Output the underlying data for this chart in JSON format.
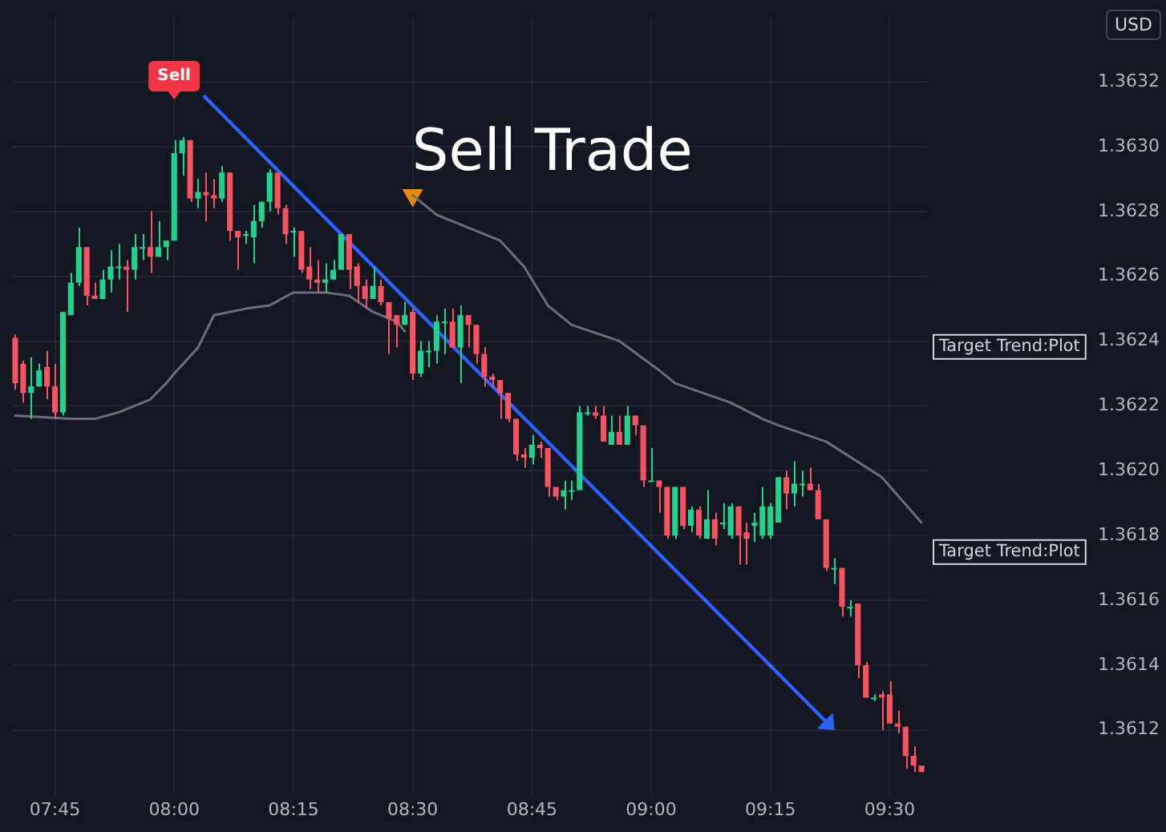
{
  "chart_data": {
    "type": "candlestick",
    "title": "Sell Trade",
    "x": [
      7.6667,
      7.6833,
      7.7,
      7.7167,
      7.7333,
      7.75,
      7.7667,
      7.7833,
      7.8,
      7.8167,
      7.8333,
      7.85,
      7.8667,
      7.8833,
      7.9,
      7.9167,
      7.9333,
      7.95,
      7.9667,
      7.9833,
      8,
      8.0167,
      8.0333,
      8.05,
      8.0667,
      8.0833,
      8.1,
      8.1167,
      8.1333,
      8.15,
      8.1667,
      8.1833,
      8.2,
      8.2167,
      8.2333,
      8.25,
      8.2667,
      8.2833,
      8.3,
      8.3167,
      8.3333,
      8.35,
      8.3667,
      8.3833,
      8.4,
      8.4167,
      8.4333,
      8.45,
      8.4667,
      8.4833,
      8.5,
      8.5167,
      8.5333,
      8.55,
      8.5667,
      8.5833,
      8.6,
      8.6167,
      8.6333,
      8.65,
      8.6667,
      8.6833,
      8.7,
      8.7167,
      8.7333,
      8.75,
      8.7667,
      8.7833,
      8.8,
      8.8167,
      8.8333,
      8.85,
      8.8667,
      8.8833,
      8.9,
      8.9167,
      8.9333,
      8.95,
      8.9667,
      8.9833,
      9,
      9.0167,
      9.0333,
      9.05,
      9.0667,
      9.0833,
      9.1,
      9.1167,
      9.1333,
      9.15,
      9.1667,
      9.1833,
      9.2,
      9.2167,
      9.2333,
      9.25,
      9.2667,
      9.2833,
      9.3,
      9.3167,
      9.3333,
      9.35,
      9.3667,
      9.3833,
      9.4,
      9.4167,
      9.4333,
      9.45,
      9.4667,
      9.4833,
      9.5,
      9.5167,
      9.5333,
      9.55,
      9.5667
    ],
    "ohlc": [
      [
        1.36241,
        1.36242,
        1.36225,
        1.36227
      ],
      [
        1.36233,
        1.36234,
        1.36221,
        1.36224
      ],
      [
        1.36224,
        1.36235,
        1.36216,
        1.36226
      ],
      [
        1.36226,
        1.36233,
        1.36226,
        1.36231
      ],
      [
        1.36232,
        1.36237,
        1.36222,
        1.36226
      ],
      [
        1.36226,
        1.36233,
        1.36216,
        1.36218
      ],
      [
        1.36218,
        1.36249,
        1.36217,
        1.36249
      ],
      [
        1.36248,
        1.36261,
        1.36248,
        1.36258
      ],
      [
        1.36258,
        1.36275,
        1.36257,
        1.36269
      ],
      [
        1.36269,
        1.36269,
        1.36251,
        1.36254
      ],
      [
        1.36254,
        1.36258,
        1.36253,
        1.36253
      ],
      [
        1.36253,
        1.36262,
        1.36253,
        1.36259
      ],
      [
        1.36259,
        1.36268,
        1.36255,
        1.36263
      ],
      [
        1.36263,
        1.3627,
        1.36259,
        1.36263
      ],
      [
        1.36263,
        1.36265,
        1.36249,
        1.36262
      ],
      [
        1.36262,
        1.36273,
        1.36259,
        1.36269
      ],
      [
        1.36269,
        1.36273,
        1.36265,
        1.36269
      ],
      [
        1.36269,
        1.3628,
        1.36261,
        1.36266
      ],
      [
        1.36266,
        1.36277,
        1.36266,
        1.36269
      ],
      [
        1.36269,
        1.36271,
        1.36265,
        1.36271
      ],
      [
        1.36271,
        1.36302,
        1.36271,
        1.36298
      ],
      [
        1.36298,
        1.36303,
        1.36291,
        1.36302
      ],
      [
        1.36302,
        1.36302,
        1.36283,
        1.36284
      ],
      [
        1.36284,
        1.3629,
        1.36281,
        1.36286
      ],
      [
        1.36286,
        1.36292,
        1.36277,
        1.36285
      ],
      [
        1.36285,
        1.3629,
        1.36281,
        1.36284
      ],
      [
        1.36284,
        1.36294,
        1.36283,
        1.36292
      ],
      [
        1.36292,
        1.36292,
        1.36271,
        1.36274
      ],
      [
        1.36274,
        1.36274,
        1.36262,
        1.36272
      ],
      [
        1.36273,
        1.36274,
        1.3627,
        1.36273
      ],
      [
        1.36272,
        1.36282,
        1.36264,
        1.36277
      ],
      [
        1.36277,
        1.36283,
        1.36275,
        1.36283
      ],
      [
        1.36283,
        1.36293,
        1.3628,
        1.36292
      ],
      [
        1.36292,
        1.36292,
        1.36279,
        1.36281
      ],
      [
        1.36281,
        1.36282,
        1.3627,
        1.36273
      ],
      [
        1.36274,
        1.36275,
        1.36266,
        1.36274
      ],
      [
        1.36274,
        1.36274,
        1.36261,
        1.36262
      ],
      [
        1.36263,
        1.36269,
        1.36256,
        1.36259
      ],
      [
        1.36259,
        1.36265,
        1.36255,
        1.36258
      ],
      [
        1.36258,
        1.36264,
        1.36255,
        1.36259
      ],
      [
        1.36259,
        1.36265,
        1.36259,
        1.36262
      ],
      [
        1.36262,
        1.36273,
        1.36262,
        1.36273
      ],
      [
        1.36273,
        1.36273,
        1.36256,
        1.36262
      ],
      [
        1.36263,
        1.36264,
        1.36252,
        1.36257
      ],
      [
        1.36257,
        1.36259,
        1.3625,
        1.36253
      ],
      [
        1.36253,
        1.36263,
        1.36253,
        1.36257
      ],
      [
        1.36257,
        1.36259,
        1.36251,
        1.36252
      ],
      [
        1.36252,
        1.36252,
        1.36236,
        1.36247
      ],
      [
        1.36248,
        1.36248,
        1.36238,
        1.36245
      ],
      [
        1.36245,
        1.36252,
        1.36245,
        1.36248
      ],
      [
        1.36249,
        1.3625,
        1.36228,
        1.3623
      ],
      [
        1.3623,
        1.3624,
        1.36229,
        1.36237
      ],
      [
        1.36237,
        1.3624,
        1.36232,
        1.36237
      ],
      [
        1.36237,
        1.36248,
        1.36233,
        1.36246
      ],
      [
        1.36246,
        1.3625,
        1.36236,
        1.36246
      ],
      [
        1.36246,
        1.3625,
        1.36238,
        1.36238
      ],
      [
        1.36238,
        1.36251,
        1.36227,
        1.36248
      ],
      [
        1.36248,
        1.36248,
        1.36238,
        1.36245
      ],
      [
        1.36245,
        1.36245,
        1.36233,
        1.36236
      ],
      [
        1.36236,
        1.36238,
        1.36226,
        1.36229
      ],
      [
        1.36229,
        1.3623,
        1.36226,
        1.36228
      ],
      [
        1.36228,
        1.36228,
        1.36216,
        1.36224
      ],
      [
        1.36224,
        1.36224,
        1.36215,
        1.36216
      ],
      [
        1.36216,
        1.36216,
        1.36203,
        1.36205
      ],
      [
        1.36205,
        1.36207,
        1.36201,
        1.36204
      ],
      [
        1.36204,
        1.36211,
        1.36202,
        1.36208
      ],
      [
        1.36208,
        1.36209,
        1.36204,
        1.36207
      ],
      [
        1.36207,
        1.36207,
        1.36192,
        1.36195
      ],
      [
        1.36195,
        1.36195,
        1.36191,
        1.36192
      ],
      [
        1.36192,
        1.36197,
        1.36188,
        1.36194
      ],
      [
        1.36194,
        1.36197,
        1.36191,
        1.36194
      ],
      [
        1.36194,
        1.3622,
        1.36194,
        1.36218
      ],
      [
        1.36218,
        1.3622,
        1.36217,
        1.36218
      ],
      [
        1.36218,
        1.3622,
        1.36216,
        1.36217
      ],
      [
        1.36217,
        1.3622,
        1.36209,
        1.36209
      ],
      [
        1.36208,
        1.36217,
        1.36208,
        1.36212
      ],
      [
        1.36212,
        1.36217,
        1.36208,
        1.36208
      ],
      [
        1.36208,
        1.3622,
        1.36208,
        1.36217
      ],
      [
        1.36217,
        1.36217,
        1.36211,
        1.36214
      ],
      [
        1.36214,
        1.36214,
        1.36195,
        1.36197
      ],
      [
        1.36197,
        1.36207,
        1.36197,
        1.36197
      ],
      [
        1.36197,
        1.36197,
        1.36187,
        1.36195
      ],
      [
        1.36195,
        1.36195,
        1.36179,
        1.3618
      ],
      [
        1.3618,
        1.36195,
        1.36179,
        1.36195
      ],
      [
        1.36195,
        1.36195,
        1.36182,
        1.36183
      ],
      [
        1.36183,
        1.36189,
        1.36181,
        1.36188
      ],
      [
        1.36188,
        1.36189,
        1.36179,
        1.3618
      ],
      [
        1.36179,
        1.36194,
        1.36179,
        1.36185
      ],
      [
        1.36185,
        1.36187,
        1.36177,
        1.36179
      ],
      [
        1.36184,
        1.3619,
        1.36182,
        1.36184
      ],
      [
        1.3618,
        1.3619,
        1.36179,
        1.36189
      ],
      [
        1.36189,
        1.36189,
        1.36171,
        1.3618
      ],
      [
        1.36181,
        1.36184,
        1.36171,
        1.36179
      ],
      [
        1.36183,
        1.36187,
        1.36178,
        1.36184
      ],
      [
        1.3618,
        1.36195,
        1.36179,
        1.36189
      ],
      [
        1.3618,
        1.3619,
        1.36179,
        1.36189
      ],
      [
        1.36184,
        1.36198,
        1.36184,
        1.36198
      ],
      [
        1.36198,
        1.362,
        1.36188,
        1.36193
      ],
      [
        1.36193,
        1.36203,
        1.36189,
        1.36196
      ],
      [
        1.36196,
        1.362,
        1.36192,
        1.36196
      ],
      [
        1.36196,
        1.36201,
        1.36194,
        1.36194
      ],
      [
        1.36194,
        1.36196,
        1.36185,
        1.36185
      ],
      [
        1.36185,
        1.36185,
        1.36169,
        1.3617
      ],
      [
        1.3617,
        1.36173,
        1.36165,
        1.3617
      ],
      [
        1.3617,
        1.3617,
        1.36155,
        1.36158
      ],
      [
        1.36158,
        1.3616,
        1.36155,
        1.36158
      ],
      [
        1.36159,
        1.36159,
        1.36136,
        1.3614
      ],
      [
        1.3614,
        1.36141,
        1.3613,
        1.3613
      ],
      [
        1.3613,
        1.36131,
        1.36129,
        1.3613
      ],
      [
        1.36131,
        1.36132,
        1.3612,
        1.3613
      ],
      [
        1.36131,
        1.36135,
        1.36122,
        1.36122
      ],
      [
        1.36122,
        1.36126,
        1.36119,
        1.36121
      ],
      [
        1.36121,
        1.36121,
        1.36108,
        1.36112
      ],
      [
        1.36112,
        1.36115,
        1.36107,
        1.36109
      ],
      [
        1.36109,
        1.36109,
        1.36107,
        1.36107
      ]
    ],
    "colors": [
      "#f7525f",
      "#f7525f",
      "#22d18b",
      "#22d18b",
      "#f7525f",
      "#f7525f",
      "#22d18b",
      "#22d18b",
      "#22d18b",
      "#f7525f",
      "#f7525f",
      "#22d18b",
      "#22d18b",
      "#22d18b",
      "#f7525f",
      "#22d18b",
      "#22d18b",
      "#f7525f",
      "#22d18b",
      "#22d18b",
      "#22d18b",
      "#22d18b",
      "#f7525f",
      "#22d18b",
      "#f7525f",
      "#f7525f",
      "#22d18b",
      "#f7525f",
      "#f7525f",
      "#22d18b",
      "#22d18b",
      "#22d18b",
      "#22d18b",
      "#f7525f",
      "#f7525f",
      "#22d18b",
      "#f7525f",
      "#f7525f",
      "#f7525f",
      "#22d18b",
      "#22d18b",
      "#22d18b",
      "#f7525f",
      "#f7525f",
      "#f7525f",
      "#22d18b",
      "#f7525f",
      "#f7525f",
      "#f7525f",
      "#22d18b",
      "#f7525f",
      "#22d18b",
      "#22d18b",
      "#22d18b",
      "#22d18b",
      "#f7525f",
      "#22d18b",
      "#f7525f",
      "#f7525f",
      "#f7525f",
      "#f7525f",
      "#f7525f",
      "#f7525f",
      "#f7525f",
      "#f7525f",
      "#22d18b",
      "#f7525f",
      "#f7525f",
      "#f7525f",
      "#22d18b",
      "#22d18b",
      "#22d18b",
      "#22d18b",
      "#f7525f",
      "#f7525f",
      "#22d18b",
      "#f7525f",
      "#22d18b",
      "#f7525f",
      "#f7525f",
      "#22d18b",
      "#f7525f",
      "#f7525f",
      "#22d18b",
      "#f7525f",
      "#22d18b",
      "#f7525f",
      "#22d18b",
      "#f7525f",
      "#22d18b",
      "#22d18b",
      "#f7525f",
      "#f7525f",
      "#22d18b",
      "#22d18b",
      "#22d18b",
      "#22d18b",
      "#f7525f",
      "#22d18b",
      "#22d18b",
      "#f7525f",
      "#f7525f",
      "#f7525f",
      "#22d18b",
      "#f7525f",
      "#22d18b",
      "#f7525f",
      "#f7525f",
      "#22d18b",
      "#f7525f",
      "#f7525f",
      "#f7525f",
      "#f7525f",
      "#f7525f",
      "#f7525f"
    ],
    "series": [
      {
        "type": "line",
        "color": "#6b6e79",
        "x": [
          7.6667,
          7.7833,
          7.8333,
          7.8833,
          7.95,
          7.9833,
          8,
          8.05,
          8.0833,
          8.15,
          8.2,
          8.25,
          8.3167,
          8.3667,
          8.4167,
          8.4667,
          8.4833
        ],
        "values": [
          1.36217,
          1.36216,
          1.36216,
          1.36218,
          1.36222,
          1.36227,
          1.3623,
          1.36238,
          1.36248,
          1.3625,
          1.36251,
          1.36255,
          1.36255,
          1.36254,
          1.36249,
          1.36246,
          1.36243
        ]
      },
      {
        "type": "line",
        "color": "#6b6e79",
        "x": [
          8.5,
          8.55,
          8.6333,
          8.6833,
          8.7333,
          8.7833,
          8.8333,
          8.9333,
          9.0167,
          9.05,
          9.1667,
          9.2333,
          9.2667,
          9.3667,
          9.4833,
          9.5667
        ],
        "values": [
          1.36285,
          1.36279,
          1.36274,
          1.36271,
          1.36263,
          1.36251,
          1.36245,
          1.3624,
          1.36231,
          1.36227,
          1.36221,
          1.36216,
          1.36214,
          1.36209,
          1.36198,
          1.36184
        ]
      },
      {
        "type": "scatter",
        "color": "#e68a00",
        "marker": "triangle",
        "x": [
          8.5
        ],
        "values": [
          1.36285
        ]
      }
    ],
    "annotations": [
      "Sell",
      "Target Trend:Plot",
      "Target Trend:Plot",
      "USD"
    ],
    "xlim": [
      7.66,
      9.58
    ],
    "xticks": [
      {
        "value": 7.75,
        "label": "07:45"
      },
      {
        "value": 8,
        "label": "08:00"
      },
      {
        "value": 8.25,
        "label": "08:15"
      },
      {
        "value": 8.5,
        "label": "08:30"
      },
      {
        "value": 8.75,
        "label": "08:45"
      },
      {
        "value": 9,
        "label": "09:00"
      },
      {
        "value": 9.25,
        "label": "09:15"
      },
      {
        "value": 9.5,
        "label": "09:30"
      }
    ],
    "ylim": [
      1.361,
      1.3634
    ],
    "yticks": [
      1.3612,
      1.3614,
      1.3616,
      1.3618,
      {
        "value": 1.362,
        "label": "1.3620"
      },
      1.3622,
      1.3624,
      1.3626,
      1.3628,
      {
        "value": 1.363,
        "label": "1.3630"
      },
      1.3632
    ],
    "grid": true,
    "legend": false
  }
}
